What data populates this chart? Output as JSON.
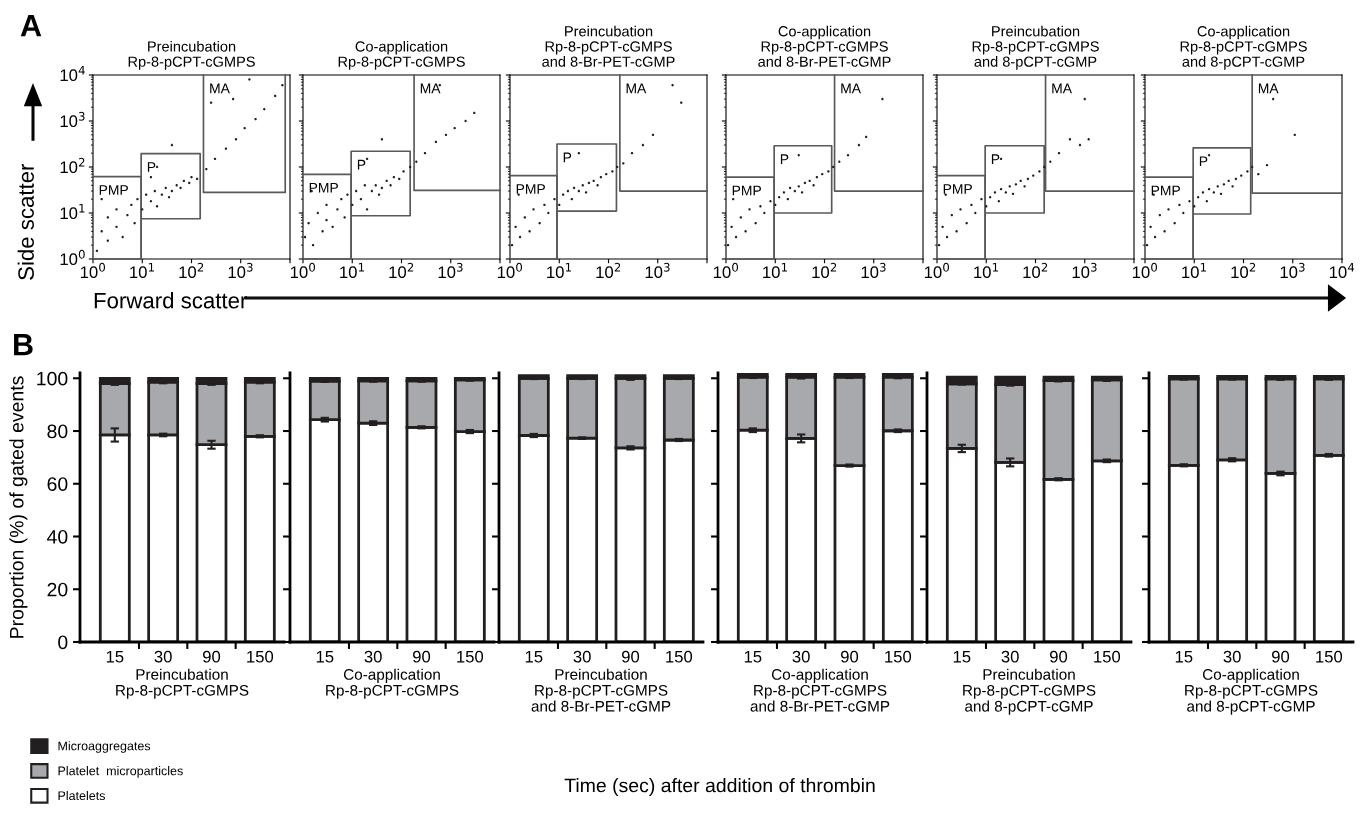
{
  "chart_data": [
    {
      "type": "scatter",
      "title": "Preincubation\nRp-8-pCPT-cGMPS",
      "xlabel": "Forward scatter",
      "ylabel": "Side scatter",
      "annotations": [
        "A"
      ],
      "log": "xy",
      "xlim": [
        1,
        10000
      ],
      "ylim": [
        1,
        10000
      ],
      "xticks": [
        {
          "value": 1,
          "label": "10$^{0}$"
        },
        {
          "value": 10,
          "label": "10$^{1}$"
        },
        {
          "value": 100,
          "label": "10$^{2}$"
        },
        {
          "value": 1000,
          "label": "10$^{3}$"
        },
        {
          "value": 10000,
          "label": null
        }
      ],
      "yticks": [
        {
          "value": 1,
          "label": "10$^{0}$"
        },
        {
          "value": 10,
          "label": "10$^{1}$"
        },
        {
          "value": 100,
          "label": "10$^{2}$"
        },
        {
          "value": 1000,
          "label": "10$^{3}$"
        },
        {
          "value": 10000,
          "label": "10$^{4}$"
        }
      ],
      "series": [
        {
          "type": "scatter",
          "color": "#231f20",
          "x": [
            1.2,
            1.5,
            2,
            2,
            3,
            3,
            4,
            5,
            6,
            7,
            8,
            10,
            12,
            15,
            18,
            20,
            25,
            30,
            35,
            40,
            50,
            60,
            70,
            90,
            100,
            130,
            200,
            300,
            500,
            800,
            1200,
            2000,
            3000,
            5000,
            7000,
            250,
            700,
            1500,
            40,
            20,
            15,
            1.5
          ],
          "values": [
            1.5,
            4,
            2.5,
            8,
            5,
            12,
            3,
            9,
            15,
            6,
            20,
            12,
            25,
            18,
            30,
            14,
            25,
            35,
            22,
            30,
            40,
            35,
            50,
            45,
            60,
            55,
            90,
            150,
            250,
            400,
            700,
            1100,
            1800,
            3500,
            6000,
            2500,
            3000,
            8000,
            300,
            100,
            60,
            20
          ]
        },
        {
          "type": "line",
          "name": "PMP",
          "color": "#58595b",
          "marker": "none",
          "x": [
            1,
            9.5,
            9.5,
            1
          ],
          "values": [
            62,
            62,
            1,
            1
          ]
        },
        {
          "type": "line",
          "name": "P",
          "color": "#58595b",
          "marker": "none",
          "x": [
            9.5,
            150,
            150,
            9.5,
            9.5
          ],
          "values": [
            7.5,
            7.5,
            195,
            195,
            1
          ]
        },
        {
          "type": "line",
          "name": "MA",
          "color": "#58595b",
          "marker": "none",
          "x": [
            175,
            175,
            8000,
            8000
          ],
          "values": [
            10000,
            28,
            28,
            10000
          ]
        }
      ]
    },
    {
      "type": "scatter",
      "title": "Co-application\nRp-8-pCPT-cGMPS",
      "log": "xy",
      "xlim": [
        1,
        10000
      ],
      "ylim": [
        1,
        10000
      ],
      "tick_labels": "x",
      "xticks": [
        {
          "value": 1,
          "label": "10$^{0}$"
        },
        {
          "value": 10,
          "label": "10$^{1}$"
        },
        {
          "value": 100,
          "label": "10$^{2}$"
        },
        {
          "value": 1000,
          "label": "10$^{3}$"
        },
        {
          "value": 10000,
          "label": null
        }
      ],
      "yticks": [
        {
          "value": 1,
          "label": null
        },
        {
          "value": 10,
          "label": null
        },
        {
          "value": 100,
          "label": null
        },
        {
          "value": 1000,
          "label": null
        },
        {
          "value": 10000,
          "label": null
        }
      ],
      "series": [
        {
          "type": "scatter",
          "color": "#231f20",
          "x": [
            1.1,
            1.3,
            1.6,
            2,
            2.5,
            3,
            3,
            4,
            5,
            6,
            7,
            8,
            10,
            12,
            15,
            18,
            20,
            25,
            30,
            35,
            40,
            50,
            60,
            70,
            90,
            110,
            150,
            200,
            300,
            500,
            800,
            1200,
            2000,
            3000,
            600,
            40,
            20,
            1.5
          ],
          "values": [
            3,
            6,
            2,
            10,
            4,
            15,
            7,
            5,
            12,
            20,
            8,
            25,
            15,
            30,
            20,
            40,
            12,
            30,
            40,
            25,
            35,
            50,
            40,
            60,
            55,
            80,
            100,
            130,
            200,
            350,
            500,
            700,
            1000,
            1500,
            6000,
            400,
            150,
            30
          ]
        },
        {
          "type": "line",
          "name": "PMP",
          "color": "#58595b",
          "marker": "none",
          "x": [
            1,
            9.5,
            9.5,
            1
          ],
          "values": [
            69,
            69,
            1,
            1
          ]
        },
        {
          "type": "line",
          "name": "P",
          "color": "#58595b",
          "marker": "none",
          "x": [
            9.5,
            150,
            150,
            9.5,
            9.5
          ],
          "values": [
            8.7,
            8.7,
            220,
            220,
            1
          ]
        },
        {
          "type": "line",
          "name": "MA",
          "color": "#58595b",
          "marker": "none",
          "x": [
            180,
            180,
            10000
          ],
          "values": [
            10000,
            31,
            31
          ]
        }
      ]
    },
    {
      "type": "scatter",
      "title": "Preincubation\nRp-8-pCPT-cGMPS\nand 8-Br-PET-cGMP",
      "log": "xy",
      "xlim": [
        1,
        10000
      ],
      "ylim": [
        1,
        10000
      ],
      "tick_labels": "x",
      "xticks": [
        {
          "value": 1,
          "label": "10$^{0}$"
        },
        {
          "value": 10,
          "label": "10$^{1}$"
        },
        {
          "value": 100,
          "label": "10$^{2}$"
        },
        {
          "value": 1000,
          "label": "10$^{3}$"
        },
        {
          "value": 10000,
          "label": null
        }
      ],
      "yticks": [
        {
          "value": 1,
          "label": null
        },
        {
          "value": 10,
          "label": null
        },
        {
          "value": 100,
          "label": null
        },
        {
          "value": 1000,
          "label": null
        },
        {
          "value": 10000,
          "label": null
        }
      ],
      "series": [
        {
          "type": "scatter",
          "color": "#231f20",
          "x": [
            1.1,
            1.3,
            1.6,
            2,
            2.5,
            3,
            4,
            5,
            6,
            8,
            10,
            12,
            15,
            18,
            20,
            25,
            30,
            35,
            40,
            50,
            60,
            70,
            90,
            120,
            150,
            200,
            300,
            500,
            800,
            2000,
            3000,
            25,
            1.5
          ],
          "values": [
            2,
            5,
            3,
            8,
            4,
            12,
            6,
            15,
            10,
            20,
            15,
            25,
            30,
            20,
            35,
            30,
            40,
            28,
            45,
            50,
            40,
            60,
            70,
            80,
            100,
            120,
            200,
            300,
            500,
            6000,
            2500,
            200,
            25
          ]
        },
        {
          "type": "line",
          "name": "PMP",
          "color": "#58595b",
          "marker": "none",
          "x": [
            1,
            9,
            9,
            1
          ],
          "values": [
            65,
            65,
            1,
            1
          ]
        },
        {
          "type": "line",
          "name": "P",
          "color": "#58595b",
          "marker": "none",
          "x": [
            9,
            145,
            145,
            9,
            9
          ],
          "values": [
            11,
            11,
            316,
            316,
            1
          ]
        },
        {
          "type": "line",
          "name": "MA",
          "color": "#58595b",
          "marker": "none",
          "x": [
            170,
            170,
            10000
          ],
          "values": [
            10000,
            30,
            30
          ]
        }
      ]
    },
    {
      "type": "scatter",
      "title": "Co-application\nRp-8-pCPT-cGMPS\nand 8-Br-PET-cGMP",
      "log": "xy",
      "xlim": [
        1,
        10000
      ],
      "ylim": [
        1,
        10000
      ],
      "tick_labels": "x",
      "xticks": [
        {
          "value": 1,
          "label": "10$^{0}$"
        },
        {
          "value": 10,
          "label": "10$^{1}$"
        },
        {
          "value": 100,
          "label": "10$^{2}$"
        },
        {
          "value": 1000,
          "label": "10$^{3}$"
        },
        {
          "value": 10000,
          "label": null
        }
      ],
      "yticks": [
        {
          "value": 1,
          "label": null
        },
        {
          "value": 10,
          "label": null
        },
        {
          "value": 100,
          "label": null
        },
        {
          "value": 1000,
          "label": null
        },
        {
          "value": 10000,
          "label": null
        }
      ],
      "series": [
        {
          "type": "scatter",
          "color": "#231f20",
          "x": [
            1.1,
            1.3,
            1.6,
            2,
            2.5,
            3,
            4,
            5,
            6,
            8,
            10,
            12,
            15,
            18,
            20,
            25,
            30,
            35,
            40,
            50,
            60,
            70,
            90,
            120,
            150,
            200,
            300,
            500,
            700,
            1500,
            30,
            1.4
          ],
          "values": [
            2,
            5,
            3,
            8,
            4,
            12,
            6,
            14,
            10,
            18,
            15,
            22,
            28,
            20,
            35,
            30,
            38,
            28,
            45,
            50,
            40,
            60,
            70,
            80,
            100,
            130,
            180,
            300,
            450,
            3000,
            180,
            20
          ]
        },
        {
          "type": "line",
          "name": "PMP",
          "color": "#58595b",
          "marker": "none",
          "x": [
            1,
            9.5,
            9.5,
            1
          ],
          "values": [
            60,
            60,
            1,
            1
          ]
        },
        {
          "type": "line",
          "name": "P",
          "color": "#58595b",
          "marker": "none",
          "x": [
            9.5,
            140,
            140,
            9.5,
            9.5
          ],
          "values": [
            10,
            10,
            290,
            290,
            1
          ]
        },
        {
          "type": "line",
          "name": "MA",
          "color": "#58595b",
          "marker": "none",
          "x": [
            160,
            160,
            10000
          ],
          "values": [
            10000,
            30,
            30
          ]
        }
      ]
    },
    {
      "type": "scatter",
      "title": "Preincubation\nRp-8-pCPT-cGMPS\nand 8-pCPT-cGMP",
      "log": "xy",
      "xlim": [
        1,
        10000
      ],
      "ylim": [
        1,
        10000
      ],
      "tick_labels": "x",
      "xticks": [
        {
          "value": 1,
          "label": "10$^{0}$"
        },
        {
          "value": 10,
          "label": "10$^{1}$"
        },
        {
          "value": 100,
          "label": "10$^{2}$"
        },
        {
          "value": 1000,
          "label": "10$^{3}$"
        },
        {
          "value": 10000,
          "label": null
        }
      ],
      "yticks": [
        {
          "value": 1,
          "label": null
        },
        {
          "value": 10,
          "label": null
        },
        {
          "value": 100,
          "label": null
        },
        {
          "value": 1000,
          "label": null
        },
        {
          "value": 10000,
          "label": null
        }
      ],
      "series": [
        {
          "type": "scatter",
          "color": "#231f20",
          "x": [
            1.1,
            1.3,
            1.6,
            2,
            2.5,
            3,
            4,
            5,
            6,
            8,
            10,
            12,
            15,
            18,
            20,
            25,
            30,
            35,
            40,
            50,
            60,
            70,
            90,
            120,
            150,
            200,
            300,
            500,
            800,
            1000,
            1200,
            20,
            1.5
          ],
          "values": [
            2,
            5,
            3,
            9,
            4,
            12,
            6,
            15,
            10,
            20,
            14,
            22,
            28,
            18,
            33,
            28,
            38,
            26,
            42,
            50,
            38,
            55,
            65,
            80,
            100,
            130,
            200,
            400,
            300,
            3000,
            400,
            150,
            25
          ]
        },
        {
          "type": "line",
          "name": "PMP",
          "color": "#58595b",
          "marker": "none",
          "x": [
            1,
            9.5,
            9.5,
            1
          ],
          "values": [
            65,
            65,
            1,
            1
          ]
        },
        {
          "type": "line",
          "name": "P",
          "color": "#58595b",
          "marker": "none",
          "x": [
            9.5,
            150,
            150,
            9.5,
            9.5
          ],
          "values": [
            10,
            10,
            290,
            290,
            1
          ]
        },
        {
          "type": "line",
          "name": "MA",
          "color": "#58595b",
          "marker": "none",
          "x": [
            160,
            160,
            10000
          ],
          "values": [
            10000,
            30,
            30
          ]
        }
      ]
    },
    {
      "type": "scatter",
      "title": "Co-application\nRp-8-pCPT-cGMPS\nand 8-pCPT-cGMP",
      "log": "xy",
      "xlim": [
        1,
        10000
      ],
      "ylim": [
        1,
        10000
      ],
      "tick_labels": "x",
      "xticks": [
        {
          "value": 1,
          "label": "10$^{0}$"
        },
        {
          "value": 10,
          "label": "10$^{1}$"
        },
        {
          "value": 100,
          "label": "10$^{2}$"
        },
        {
          "value": 1000,
          "label": "10$^{3}$"
        },
        {
          "value": 10000,
          "label": "10$^{4}$"
        }
      ],
      "yticks": [
        {
          "value": 1,
          "label": null
        },
        {
          "value": 10,
          "label": null
        },
        {
          "value": 100,
          "label": null
        },
        {
          "value": 1000,
          "label": null
        },
        {
          "value": 10000,
          "label": null
        }
      ],
      "series": [
        {
          "type": "scatter",
          "color": "#231f20",
          "x": [
            1.1,
            1.3,
            1.6,
            2,
            2.5,
            3,
            4,
            5,
            6,
            8,
            10,
            12,
            15,
            18,
            20,
            25,
            30,
            35,
            40,
            50,
            60,
            70,
            90,
            120,
            150,
            200,
            300,
            400,
            1100,
            20,
            1.5
          ],
          "values": [
            2,
            5,
            3,
            9,
            4,
            12,
            6,
            15,
            10,
            18,
            14,
            22,
            28,
            18,
            33,
            28,
            38,
            26,
            42,
            50,
            38,
            55,
            65,
            80,
            100,
            70,
            110,
            3000,
            500,
            180,
            25
          ]
        },
        {
          "type": "line",
          "name": "PMP",
          "color": "#58595b",
          "marker": "none",
          "x": [
            1,
            9.5,
            9.5,
            1
          ],
          "values": [
            60,
            60,
            1,
            1
          ]
        },
        {
          "type": "line",
          "name": "P",
          "color": "#58595b",
          "marker": "none",
          "x": [
            9.5,
            140,
            140,
            9.5,
            9.5
          ],
          "values": [
            9.5,
            9.5,
            260,
            260,
            1
          ]
        },
        {
          "type": "line",
          "name": "MA",
          "color": "#58595b",
          "marker": "none",
          "x": [
            150,
            150,
            10000
          ],
          "values": [
            10000,
            27,
            27
          ]
        }
      ]
    },
    {
      "type": "bar",
      "stacked": true,
      "categories": [
        "15",
        "30",
        "90",
        "150"
      ],
      "xlabel": "Preincubation\nRp-8-pCPT-cGMPS",
      "ylabel": "Proportion (%) of gated events",
      "annotations": [
        "B",
        "Time (sec) after addition of thrombin"
      ],
      "legend": "bottom left",
      "ylim": [
        0,
        102
      ],
      "yticks": [
        0,
        20,
        40,
        60,
        80,
        100
      ],
      "series": [
        {
          "name": "Platelets",
          "color": "#ffffff",
          "values": [
            78.5,
            78.5,
            74.8,
            78
          ],
          "errors": [
            2.5,
            0.5,
            1.5,
            0.4
          ]
        },
        {
          "name": "Platelet  microparticles",
          "color": "#a7a9ac",
          "values": [
            19.5,
            20,
            23.2,
            20.5
          ],
          "errors": [
            0.5,
            0.4,
            0.5,
            0.4
          ]
        },
        {
          "name": "Microaggregates",
          "color": "#231f20",
          "values": [
            2,
            1.5,
            2,
            1.5
          ]
        }
      ]
    },
    {
      "type": "bar",
      "stacked": true,
      "categories": [
        "15",
        "30",
        "90",
        "150"
      ],
      "xlabel": "Co-application\nRp-8-pCPT-cGMPS",
      "tick_labels": "x",
      "ylim": [
        0,
        102
      ],
      "yticks": [
        0,
        20,
        40,
        60,
        80,
        100
      ],
      "series": [
        {
          "color": "#ffffff",
          "values": [
            84.3,
            83,
            81.4,
            79.8
          ],
          "errors": [
            0.7,
            0.7,
            0.4,
            0.6
          ]
        },
        {
          "color": "#a7a9ac",
          "values": [
            14.6,
            16,
            17.6,
            19.6
          ],
          "errors": [
            0.3,
            0.3,
            0.3,
            0.3
          ]
        },
        {
          "color": "#231f20",
          "values": [
            1.1,
            1,
            1,
            0.6
          ]
        }
      ]
    },
    {
      "type": "bar",
      "stacked": true,
      "categories": [
        "15",
        "30",
        "90",
        "150"
      ],
      "xlabel": "Preincubation\nRp-8-pCPT-cGMPS\nand 8-Br-PET-cGMP",
      "tick_labels": "x",
      "ylim": [
        0,
        102
      ],
      "yticks": [
        0,
        20,
        40,
        60,
        80,
        100
      ],
      "series": [
        {
          "color": "#ffffff",
          "values": [
            78.3,
            77.3,
            73.6,
            76.6
          ],
          "errors": [
            0.6,
            0.3,
            0.6,
            0.4
          ]
        },
        {
          "color": "#a7a9ac",
          "values": [
            21.7,
            22.7,
            26.4,
            23.4
          ],
          "errors": [
            0.3,
            0.3,
            0.6,
            0.3
          ]
        },
        {
          "color": "#231f20",
          "values": [
            1,
            1,
            1,
            1
          ]
        }
      ]
    },
    {
      "type": "bar",
      "stacked": true,
      "categories": [
        "15",
        "30",
        "90",
        "150"
      ],
      "xlabel": "Co-application\nRp-8-pCPT-cGMPS\nand 8-Br-PET-cGMP",
      "tick_labels": "x",
      "ylim": [
        0,
        102
      ],
      "yticks": [
        0,
        20,
        40,
        60,
        80,
        100
      ],
      "series": [
        {
          "color": "#ffffff",
          "values": [
            80.3,
            77.2,
            66.9,
            80.1
          ],
          "errors": [
            0.7,
            1.5,
            0.4,
            0.5
          ]
        },
        {
          "color": "#a7a9ac",
          "values": [
            20.1,
            23.2,
            33.5,
            20.3
          ],
          "errors": [
            0.3,
            0.5,
            0.3,
            0.4
          ]
        },
        {
          "color": "#231f20",
          "values": [
            1.1,
            1.1,
            1.1,
            1.1
          ]
        }
      ]
    },
    {
      "type": "bar",
      "stacked": true,
      "categories": [
        "15",
        "30",
        "90",
        "150"
      ],
      "xlabel": "Preincubation\nRp-8-pCPT-cGMPS\nand 8-pCPT-cGMP",
      "tick_labels": "x",
      "ylim": [
        0,
        102
      ],
      "yticks": [
        0,
        20,
        40,
        60,
        80,
        100
      ],
      "series": [
        {
          "color": "#ffffff",
          "values": [
            73.4,
            68.1,
            61.7,
            68.7
          ],
          "errors": [
            1.4,
            1.5,
            0.4,
            0.5
          ]
        },
        {
          "color": "#a7a9ac",
          "values": [
            24.5,
            29.5,
            37.4,
            30.7
          ],
          "errors": [
            0.3,
            0.4,
            0.3,
            0.4
          ]
        },
        {
          "color": "#231f20",
          "values": [
            2.5,
            2.8,
            1.3,
            1
          ]
        }
      ]
    },
    {
      "type": "bar",
      "stacked": true,
      "categories": [
        "15",
        "30",
        "90",
        "150"
      ],
      "xlabel": "Co-application\nRp-8-pCPT-cGMPS\nand 8-pCPT-cGMP",
      "tick_labels": "x",
      "ylim": [
        0,
        102
      ],
      "yticks": [
        0,
        20,
        40,
        60,
        80,
        100
      ],
      "series": [
        {
          "color": "#ffffff",
          "values": [
            67,
            69.1,
            63.9,
            70.8
          ],
          "errors": [
            0.4,
            0.6,
            0.7,
            0.5
          ]
        },
        {
          "color": "#a7a9ac",
          "values": [
            32.8,
            30.7,
            35.9,
            29
          ],
          "errors": [
            0.3,
            0.3,
            0.4,
            0.4
          ]
        },
        {
          "color": "#231f20",
          "values": [
            0.9,
            0.9,
            0.9,
            0.9
          ]
        }
      ]
    }
  ]
}
